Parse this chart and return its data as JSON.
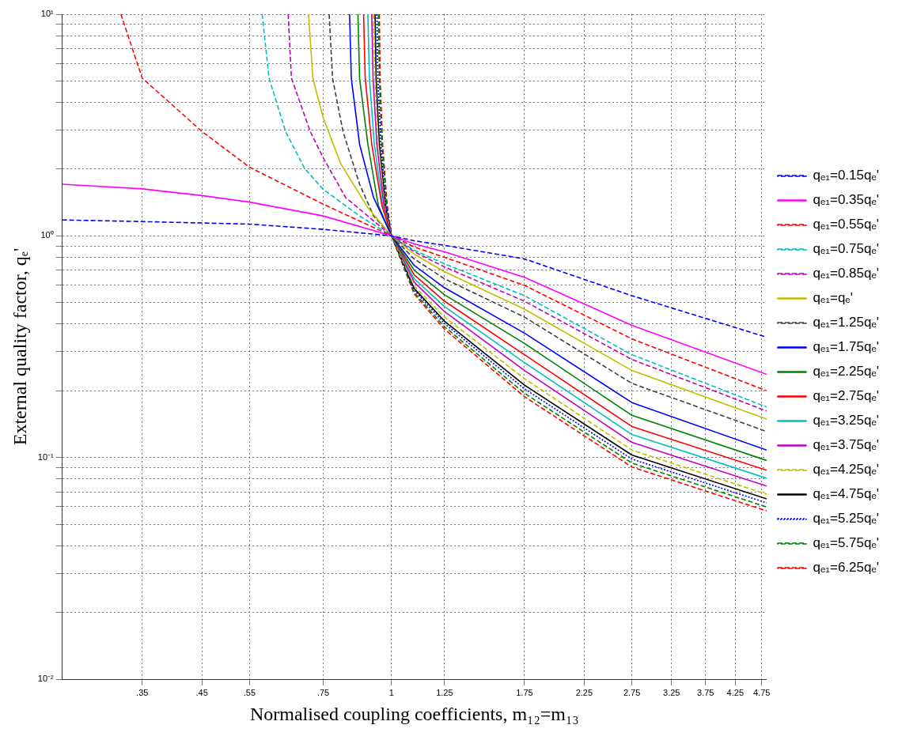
{
  "chart_data": {
    "type": "line",
    "xlabel": "Normalised coupling coefficients, m₁₂=m₁₃",
    "ylabel": "External quality factor, qₑ'",
    "log": "xy",
    "grid": true,
    "legend": "right",
    "marker": "none",
    "xlim": [
      0.25,
      4.85
    ],
    "xticks": [
      {
        "value": 0.35,
        "label": ".35"
      },
      {
        "value": 0.45,
        "label": ".45"
      },
      {
        "value": 0.55,
        "label": ".55"
      },
      {
        "value": 0.75,
        "label": ".75"
      },
      1,
      1.25,
      1.75,
      2.25,
      2.75,
      3.25,
      3.75,
      4.25,
      4.75
    ],
    "ylim": [
      0.01,
      10
    ],
    "yticks": [
      {
        "value": 0.01,
        "label": "10⁻²"
      },
      {
        "value": 0.02,
        "label": null
      },
      {
        "value": 0.03,
        "label": null
      },
      {
        "value": 0.04,
        "label": null
      },
      {
        "value": 0.05,
        "label": null
      },
      {
        "value": 0.06,
        "label": null
      },
      {
        "value": 0.07,
        "label": null
      },
      {
        "value": 0.08,
        "label": null
      },
      {
        "value": 0.09,
        "label": null
      },
      {
        "value": 0.1,
        "label": "10⁻¹"
      },
      {
        "value": 0.2,
        "label": null
      },
      {
        "value": 0.3,
        "label": null
      },
      {
        "value": 0.4,
        "label": null
      },
      {
        "value": 0.5,
        "label": null
      },
      {
        "value": 0.6,
        "label": null
      },
      {
        "value": 0.7,
        "label": null
      },
      {
        "value": 0.8,
        "label": null
      },
      {
        "value": 0.9,
        "label": null
      },
      {
        "value": 1,
        "label": "10⁰"
      },
      {
        "value": 2,
        "label": null
      },
      {
        "value": 3,
        "label": null
      },
      {
        "value": 4,
        "label": null
      },
      {
        "value": 5,
        "label": null
      },
      {
        "value": 6,
        "label": null
      },
      {
        "value": 7,
        "label": null
      },
      {
        "value": 8,
        "label": null
      },
      {
        "value": 9,
        "label": null
      },
      {
        "value": 10,
        "label": "10¹"
      }
    ],
    "series": [
      {
        "name": "qₑ₁=0.15qₑ'",
        "color": "#0000ff",
        "line_style": "dashed",
        "x": [
          0.25,
          0.35,
          0.55,
          0.75,
          1,
          1.1,
          1.25,
          1.75,
          2.75,
          4.85
        ],
        "values": [
          1.18,
          1.16,
          1.13,
          1.07,
          1,
          0.95,
          0.906,
          0.787,
          0.537,
          0.349
        ]
      },
      {
        "name": "qₑ₁=0.35qₑ'",
        "color": "#ff00ff",
        "line_style": "solid",
        "x": [
          0.25,
          0.35,
          0.45,
          0.55,
          0.75,
          1,
          1.1,
          1.25,
          1.75,
          2.75,
          4.85
        ],
        "values": [
          1.71,
          1.63,
          1.52,
          1.42,
          1.23,
          1,
          0.92,
          0.848,
          0.65,
          0.395,
          0.237
        ]
      },
      {
        "name": "qₑ₁=0.55qₑ'",
        "color": "#ff0000",
        "line_style": "dashed",
        "x": [
          0.32,
          0.35,
          0.45,
          0.55,
          0.75,
          1,
          1.1,
          1.25,
          1.75,
          2.75,
          4.85
        ],
        "values": [
          10,
          5.15,
          2.96,
          2.04,
          1.39,
          1,
          0.891,
          0.8,
          0.598,
          0.343,
          0.2
        ]
      },
      {
        "name": "qₑ₁=0.75qₑ'",
        "color": "#00bfbf",
        "line_style": "dashed",
        "x": [
          0.58,
          0.597,
          0.64,
          0.693,
          0.75,
          0.874,
          1,
          1.1,
          1.25,
          1.75,
          2.75,
          4.85
        ],
        "values": [
          10,
          5.15,
          2.96,
          2.02,
          1.62,
          1.23,
          1,
          0.861,
          0.748,
          0.537,
          0.291,
          0.169
        ]
      },
      {
        "name": "qₑ₁=0.85qₑ'",
        "color": "#bf00bf",
        "line_style": "dashed",
        "x": [
          0.647,
          0.656,
          0.71,
          0.75,
          0.824,
          1,
          1.1,
          1.25,
          1.75,
          2.75,
          4.85
        ],
        "values": [
          10,
          5.15,
          2.96,
          2.25,
          1.49,
          1,
          0.848,
          0.724,
          0.507,
          0.277,
          0.162
        ]
      },
      {
        "name": "qₑ₁=qₑ'",
        "color": "#bfbf00",
        "line_style": "solid",
        "x": [
          0.705,
          0.718,
          0.75,
          0.807,
          0.905,
          1,
          1.1,
          1.25,
          1.75,
          2.75,
          4.85
        ],
        "values": [
          10,
          5.15,
          3.41,
          2.12,
          1.34,
          1,
          0.827,
          0.689,
          0.467,
          0.247,
          0.149
        ]
      },
      {
        "name": "qₑ₁=1.25qₑ'",
        "color": "#404040",
        "line_style": "dashed",
        "x": [
          0.769,
          0.78,
          0.815,
          0.874,
          0.927,
          1,
          1.1,
          1.25,
          1.75,
          2.75,
          4.85
        ],
        "values": [
          10,
          5.15,
          2.96,
          1.71,
          1.23,
          1,
          0.787,
          0.64,
          0.43,
          0.216,
          0.131
        ]
      },
      {
        "name": "qₑ₁=1.75qₑ'",
        "color": "#0000ff",
        "line_style": "solid",
        "x": [
          0.838,
          0.844,
          0.874,
          0.927,
          1,
          1.1,
          1.25,
          1.75,
          2.75,
          4.85
        ],
        "values": [
          10,
          5.15,
          2.59,
          1.49,
          1,
          0.736,
          0.583,
          0.364,
          0.177,
          0.108
        ]
      },
      {
        "name": "qₑ₁=2.25qₑ'",
        "color": "#008000",
        "line_style": "solid",
        "x": [
          0.868,
          0.874,
          0.905,
          0.946,
          1,
          1.1,
          1.25,
          1.75,
          2.75,
          4.85
        ],
        "values": [
          10,
          5.15,
          2.59,
          1.37,
          1,
          0.7,
          0.542,
          0.327,
          0.155,
          0.097
        ]
      },
      {
        "name": "qₑ₁=2.75qₑ'",
        "color": "#ff0000",
        "line_style": "solid",
        "x": [
          0.889,
          0.895,
          0.92,
          0.96,
          1,
          1.1,
          1.25,
          1.75,
          2.75,
          4.85
        ],
        "values": [
          10,
          5.15,
          2.59,
          1.37,
          1,
          0.667,
          0.507,
          0.291,
          0.138,
          0.0876
        ]
      },
      {
        "name": "qₑ₁=3.25qₑ'",
        "color": "#00bfbf",
        "line_style": "solid",
        "x": [
          0.905,
          0.911,
          0.93,
          0.963,
          1,
          1.1,
          1.25,
          1.75,
          2.75,
          4.85
        ],
        "values": [
          10,
          5.15,
          2.59,
          1.37,
          1,
          0.64,
          0.479,
          0.268,
          0.127,
          0.0806
        ]
      },
      {
        "name": "qₑ₁=3.75qₑ'",
        "color": "#bf00bf",
        "line_style": "solid",
        "x": [
          0.92,
          0.925,
          0.94,
          0.968,
          1,
          1.1,
          1.25,
          1.75,
          2.75,
          4.85
        ],
        "values": [
          10,
          5.15,
          2.59,
          1.37,
          1,
          0.618,
          0.455,
          0.247,
          0.117,
          0.0743
        ]
      },
      {
        "name": "qₑ₁=4.25qₑ'",
        "color": "#bfbf00",
        "line_style": "dashed",
        "x": [
          0.927,
          0.932,
          0.946,
          0.971,
          1,
          1.1,
          1.25,
          1.75,
          2.75,
          4.85
        ],
        "values": [
          10,
          5.15,
          2.59,
          1.37,
          1,
          0.593,
          0.43,
          0.227,
          0.108,
          0.0683
        ]
      },
      {
        "name": "qₑ₁=4.75qₑ'",
        "color": "#000000",
        "line_style": "solid",
        "x": [
          0.933,
          0.937,
          0.95,
          0.974,
          1,
          1.1,
          1.25,
          1.75,
          2.75,
          4.85
        ],
        "values": [
          10,
          5.15,
          2.59,
          1.37,
          1,
          0.579,
          0.412,
          0.212,
          0.1026,
          0.065
        ]
      },
      {
        "name": "qₑ₁=5.25qₑ'",
        "color": "#0000ff",
        "line_style": "dotted",
        "x": [
          0.94,
          0.944,
          0.956,
          0.977,
          1,
          1.1,
          1.25,
          1.75,
          2.75,
          4.85
        ],
        "values": [
          10,
          5.15,
          2.59,
          1.37,
          1,
          0.569,
          0.402,
          0.204,
          0.0984,
          0.0624
        ]
      },
      {
        "name": "qₑ₁=5.75qₑ'",
        "color": "#008000",
        "line_style": "dashed",
        "x": [
          0.946,
          0.95,
          0.96,
          0.98,
          1,
          1.1,
          1.25,
          1.75,
          2.75,
          4.85
        ],
        "values": [
          10,
          5.15,
          2.59,
          1.37,
          1,
          0.555,
          0.389,
          0.195,
          0.0944,
          0.0598
        ]
      },
      {
        "name": "qₑ₁=6.25qₑ'",
        "color": "#ff0000",
        "line_style": "dashed",
        "x": [
          0.95,
          0.953,
          0.963,
          0.982,
          1,
          1.1,
          1.25,
          1.75,
          2.75,
          4.85
        ],
        "values": [
          10,
          5.15,
          2.59,
          1.37,
          1,
          0.546,
          0.379,
          0.188,
          0.0906,
          0.0574
        ]
      }
    ]
  }
}
